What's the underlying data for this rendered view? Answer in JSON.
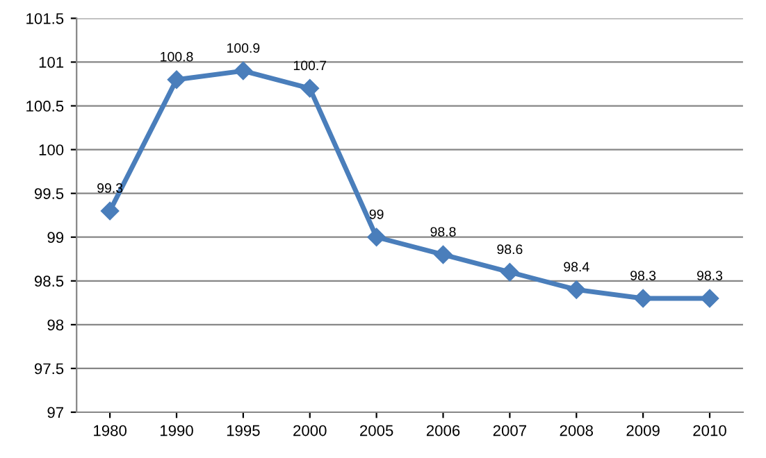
{
  "chart_data": {
    "type": "line",
    "categories": [
      "1980",
      "1990",
      "1995",
      "2000",
      "2005",
      "2006",
      "2007",
      "2008",
      "2009",
      "2010"
    ],
    "series": [
      {
        "color": "#4a7ebb",
        "values": [
          99.3,
          100.8,
          100.9,
          100.7,
          99,
          98.8,
          98.6,
          98.4,
          98.3,
          98.3
        ]
      }
    ],
    "ylim": [
      97,
      101.5
    ],
    "yticks": [
      97,
      97.5,
      98,
      98.5,
      99,
      99.5,
      100,
      100.5,
      101,
      101.5
    ],
    "grid": "y",
    "marker": "diamond",
    "line_style": "solid",
    "data_labels": true
  }
}
